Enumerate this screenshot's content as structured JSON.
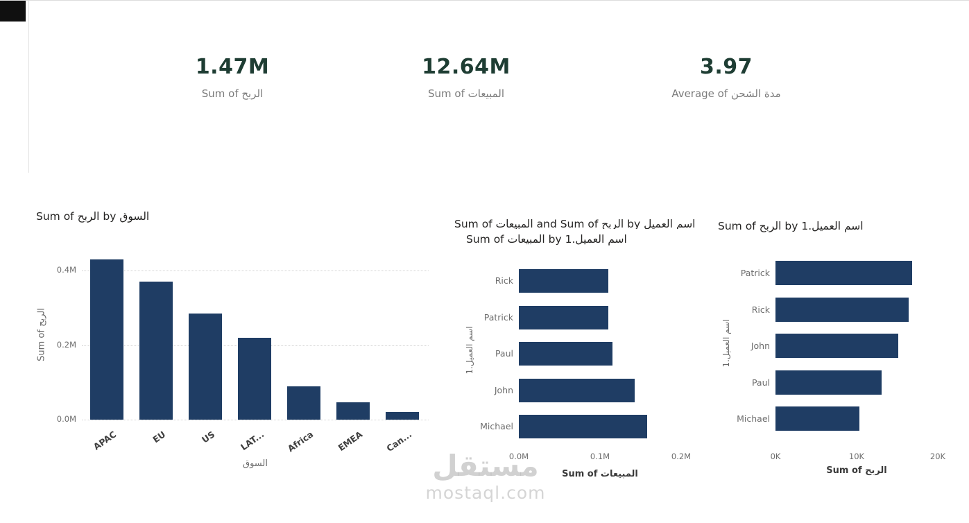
{
  "colors": {
    "bar": "#1f3d64",
    "kpi_value": "#1e3d33",
    "accent_dot": "#2b6bd0"
  },
  "kpis": [
    {
      "value": "1.47M",
      "label": "Sum of الربح"
    },
    {
      "value": "12.64M",
      "label": "Sum of المبيعات"
    },
    {
      "value": "3.97",
      "label": "Average of مدة الشحن"
    }
  ],
  "chart_data": [
    {
      "type": "bar",
      "title": "Sum of الربح by السوق",
      "categories": [
        "APAC",
        "EU",
        "US",
        "LAT...",
        "Africa",
        "EMEA",
        "Can..."
      ],
      "values": [
        0.43,
        0.37,
        0.285,
        0.22,
        0.09,
        0.046,
        0.02
      ],
      "xlabel": "السوق",
      "ylabel": "Sum of الربح",
      "yticks": [
        "0.0M",
        "0.2M",
        "0.4M"
      ],
      "ytick_values": [
        0,
        0.2,
        0.4
      ],
      "ylim": [
        0,
        0.45
      ],
      "grid": "dotted horizontal"
    },
    {
      "type": "bar-horizontal",
      "title": "Sum of المبيعات by اسم العميل.1",
      "categories": [
        "Rick",
        "Patrick",
        "Paul",
        "John",
        "Michael"
      ],
      "values": [
        0.11,
        0.11,
        0.115,
        0.143,
        0.158
      ],
      "xlabel": "Sum of المبيعات",
      "ylabel": "اسم العميل.1",
      "xticks": [
        "0.0M",
        "0.1M",
        "0.2M"
      ],
      "xtick_values": [
        0,
        0.1,
        0.2
      ],
      "xlim": [
        0,
        0.2
      ]
    },
    {
      "type": "bar-horizontal",
      "title": "Sum of الربح by اسم العميل.1",
      "categories": [
        "Patrick",
        "Rick",
        "John",
        "Paul",
        "Michael"
      ],
      "values": [
        16.8,
        16.4,
        15.1,
        13.1,
        10.3
      ],
      "xlabel": "Sum of الربح",
      "ylabel": "اسم العميل.1",
      "xticks": [
        "0K",
        "10K",
        "20K"
      ],
      "xtick_values": [
        0,
        10,
        20
      ],
      "xlim": [
        0,
        20
      ]
    }
  ],
  "hidden_chart": {
    "partial_title": "Sum of المبيعات and Sum of الربح by اسم العميل"
  },
  "watermark": {
    "line1": "مستقل",
    "line2": "mostaql.com"
  }
}
